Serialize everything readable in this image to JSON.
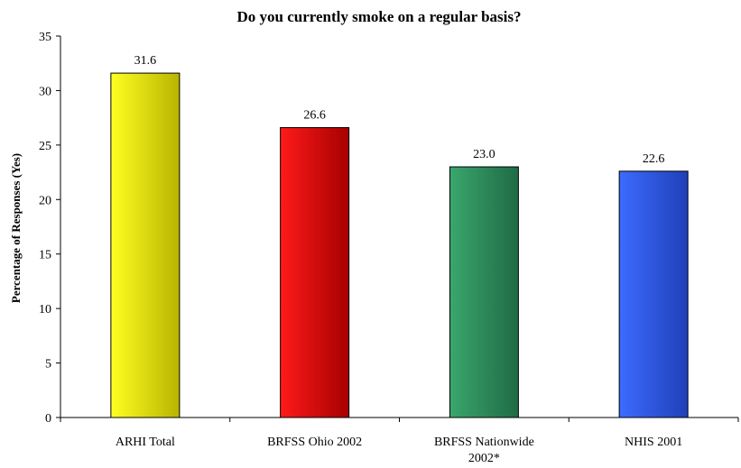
{
  "chart_data": {
    "type": "bar",
    "title": "Do you currently smoke on a regular basis?",
    "xlabel": "",
    "ylabel": "Percentage of Responses (Yes)",
    "ylim": [
      0,
      35
    ],
    "yticks": [
      0,
      5,
      10,
      15,
      20,
      25,
      30,
      35
    ],
    "grid": false,
    "legend": "none",
    "categories": [
      [
        "ARHI Total"
      ],
      [
        "BRFSS Ohio 2002"
      ],
      [
        "BRFSS Nationwide",
        "2002*"
      ],
      [
        "NHIS 2001"
      ]
    ],
    "values": [
      31.6,
      26.6,
      23.0,
      22.6
    ],
    "value_labels": [
      "31.6",
      "26.6",
      "23.0",
      "22.6"
    ],
    "bar_colors": [
      {
        "light": "#ffff22",
        "dark": "#b8b400"
      },
      {
        "light": "#ff1a1a",
        "dark": "#a60000"
      },
      {
        "light": "#3aa66d",
        "dark": "#1f6b46"
      },
      {
        "light": "#3d6bff",
        "dark": "#1f40b8"
      }
    ]
  }
}
